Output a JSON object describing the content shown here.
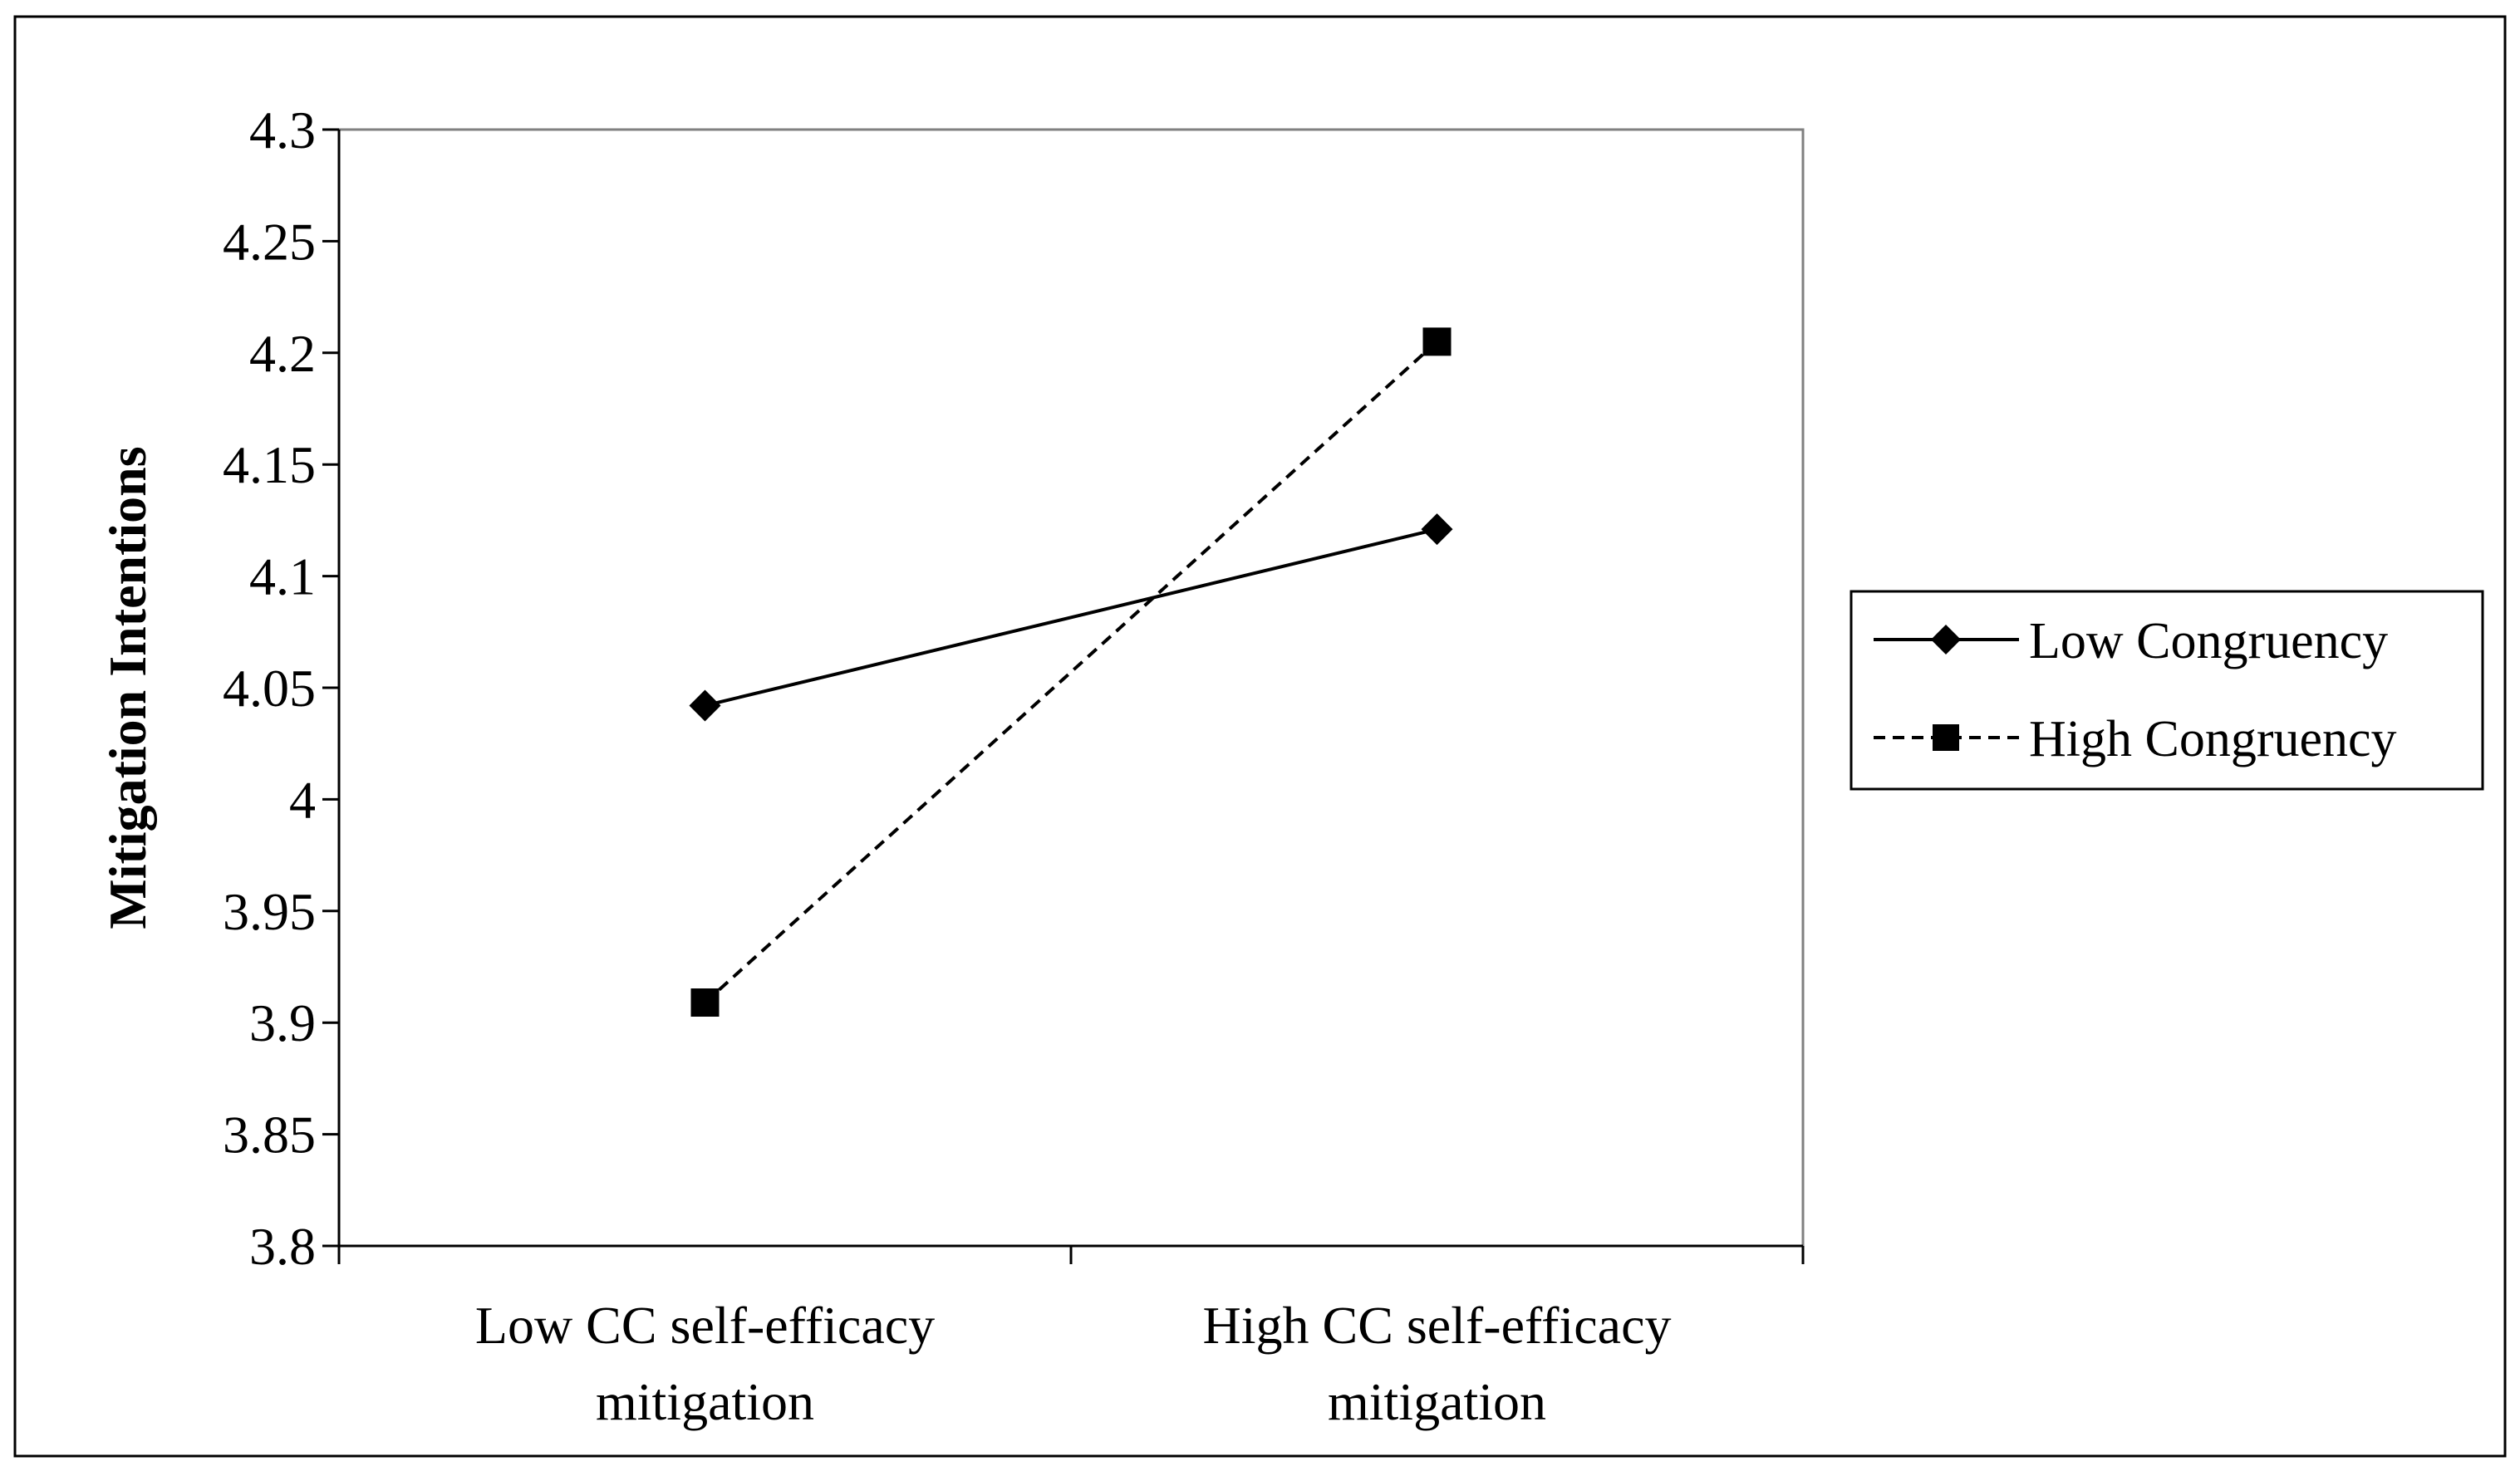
{
  "chart_data": {
    "type": "line",
    "title": "",
    "xlabel": "",
    "ylabel": "Mitigation Intentions",
    "categories": [
      [
        "Low CC self-efficacy",
        "mitigation"
      ],
      [
        "High CC self-efficacy",
        "mitigation"
      ]
    ],
    "ylim": [
      3.8,
      4.3
    ],
    "yticks": [
      3.8,
      3.85,
      3.9,
      3.95,
      4,
      4.05,
      4.1,
      4.15,
      4.2,
      4.25,
      4.3
    ],
    "ytick_labels": [
      "3.8",
      "3.85",
      "3.9",
      "3.95",
      "4",
      "4.05",
      "4.1",
      "4.15",
      "4.2",
      "4.25",
      "4.3"
    ],
    "grid": false,
    "legend_position": "right",
    "series": [
      {
        "name": "Low Congruency",
        "values": [
          4.042,
          4.121
        ],
        "marker": "diamond",
        "line": "solid",
        "color": "#000000"
      },
      {
        "name": "High Congruency",
        "values": [
          3.909,
          4.205
        ],
        "marker": "square",
        "line": "dashed",
        "color": "#000000"
      }
    ]
  }
}
